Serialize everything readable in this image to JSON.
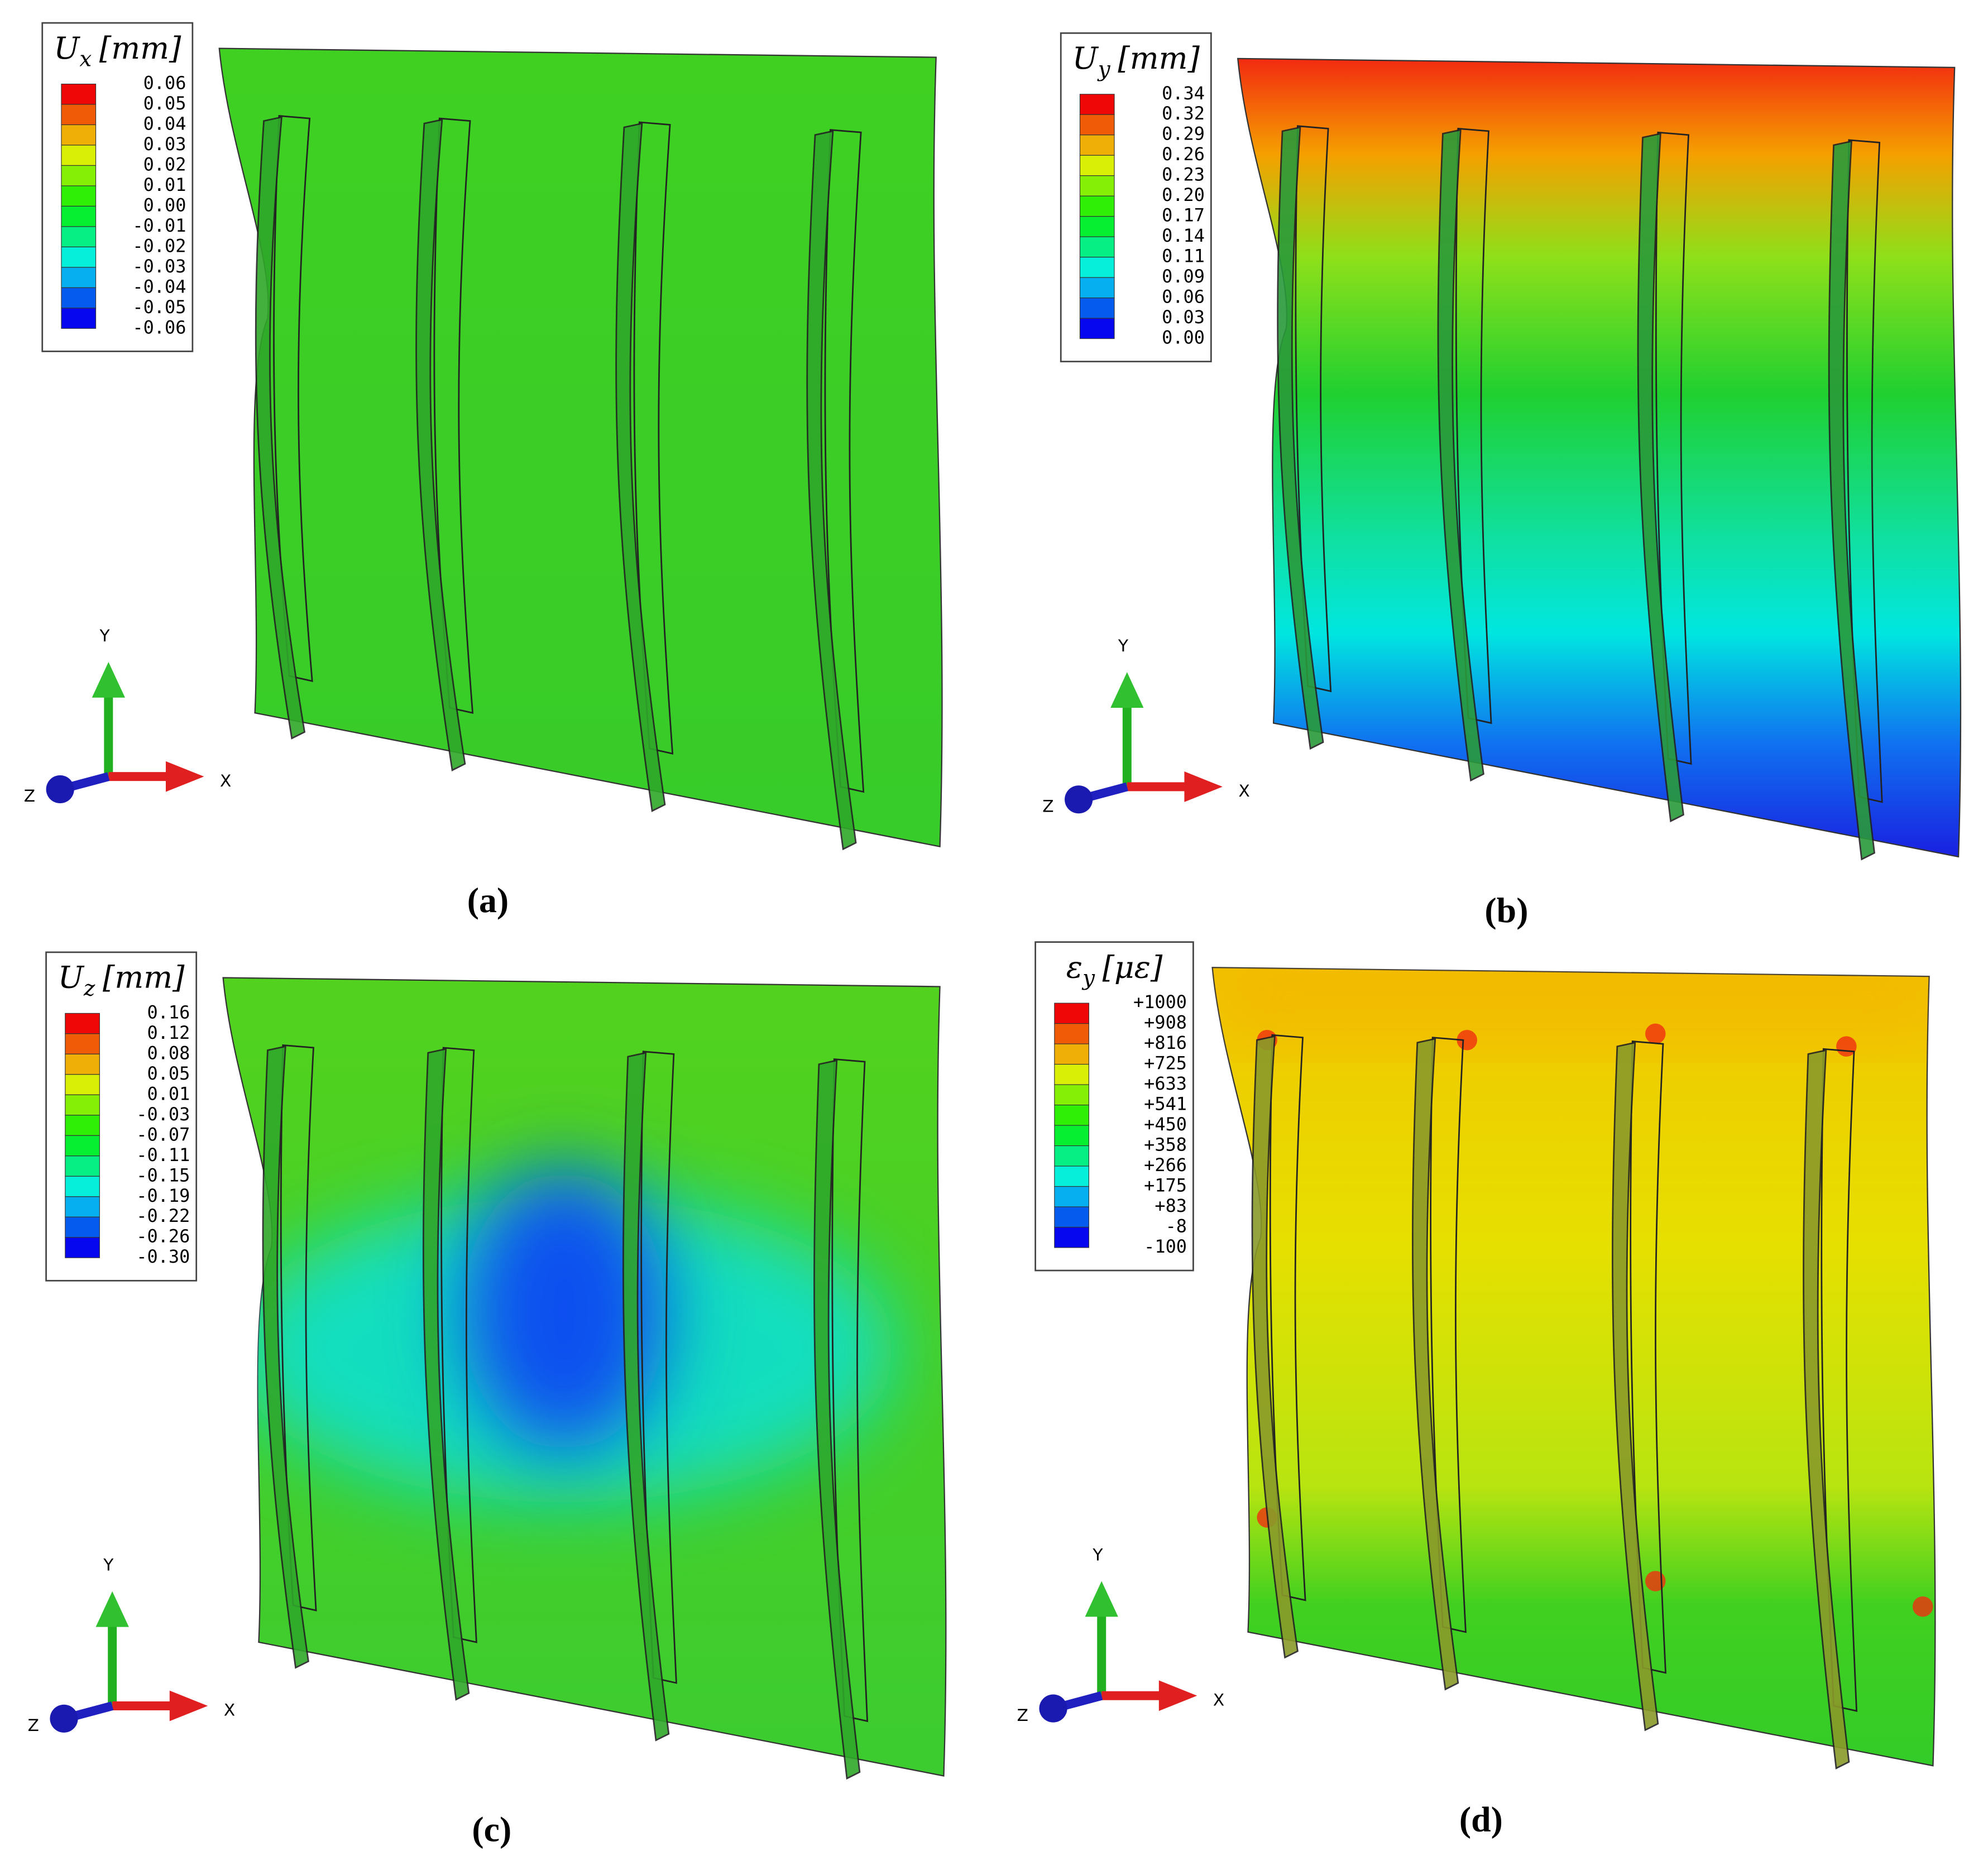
{
  "panels": [
    {
      "legend": {
        "symbol": "U",
        "subscript": "x",
        "unit": "[mm]",
        "labels": [
          "0.06",
          "0.05",
          "0.04",
          "0.03",
          "0.02",
          "0.01",
          "0.00",
          "-0.01",
          "-0.02",
          "-0.03",
          "-0.04",
          "-0.05",
          "-0.06"
        ]
      },
      "axes": {
        "y": "Y",
        "x": "X",
        "z": "Z"
      },
      "caption": "(a)"
    },
    {
      "legend": {
        "symbol": "U",
        "subscript": "y",
        "unit": "[mm]",
        "labels": [
          "0.34",
          "0.32",
          "0.29",
          "0.26",
          "0.23",
          "0.20",
          "0.17",
          "0.14",
          "0.11",
          "0.09",
          "0.06",
          "0.03",
          "0.00"
        ]
      },
      "axes": {
        "y": "Y",
        "x": "X",
        "z": "Z"
      },
      "caption": "(b)"
    },
    {
      "legend": {
        "symbol": "U",
        "subscript": "z",
        "unit": "[mm]",
        "labels": [
          "0.16",
          "0.12",
          "0.08",
          "0.05",
          "0.01",
          "-0.03",
          "-0.07",
          "-0.11",
          "-0.15",
          "-0.19",
          "-0.22",
          "-0.26",
          "-0.30"
        ]
      },
      "axes": {
        "y": "Y",
        "x": "X",
        "z": "Z"
      },
      "caption": "(c)"
    },
    {
      "legend": {
        "symbol": "ε",
        "subscript": "y",
        "unit": "[με]",
        "labels": [
          "+1000",
          "+908",
          "+816",
          "+725",
          "+633",
          "+541",
          "+450",
          "+358",
          "+266",
          "+175",
          "+83",
          "-8",
          "-100"
        ]
      },
      "axes": {
        "y": "Y",
        "x": "X",
        "z": "Z"
      },
      "caption": "(d)"
    }
  ]
}
